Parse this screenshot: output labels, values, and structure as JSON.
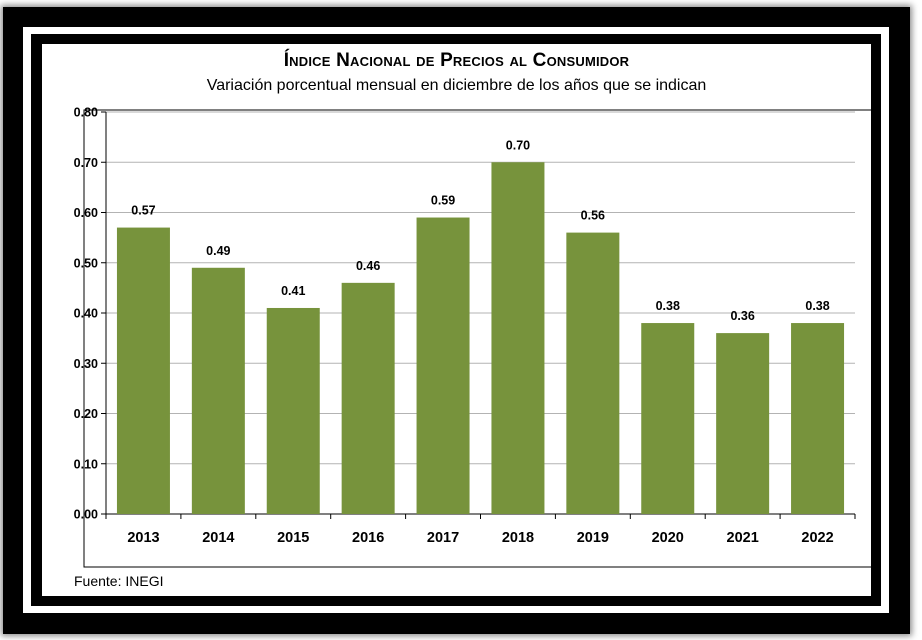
{
  "chart_data": {
    "type": "bar",
    "title": "Índice Nacional de Precios al Consumidor",
    "subtitle": "Variación porcentual mensual en diciembre de los años que se indican",
    "categories": [
      "2013",
      "2014",
      "2015",
      "2016",
      "2017",
      "2018",
      "2019",
      "2020",
      "2021",
      "2022"
    ],
    "values": [
      0.57,
      0.49,
      0.41,
      0.46,
      0.59,
      0.7,
      0.56,
      0.38,
      0.36,
      0.38
    ],
    "data_labels": [
      "0.57",
      "0.49",
      "0.41",
      "0.46",
      "0.59",
      "0.70",
      "0.56",
      "0.38",
      "0.36",
      "0.38"
    ],
    "yticks": [
      0.0,
      0.1,
      0.2,
      0.3,
      0.4,
      0.5,
      0.6,
      0.7,
      0.8
    ],
    "ytick_labels": [
      "0.00",
      "0.10",
      "0.20",
      "0.30",
      "0.40",
      "0.50",
      "0.60",
      "0.70",
      "0.80"
    ],
    "ylim": [
      0,
      0.8
    ],
    "xlabel": "",
    "ylabel": "",
    "grid": true,
    "legend": "none",
    "bar_color": "#77933c",
    "grid_color": "#b3b3b3",
    "source": "Fuente: INEGI"
  }
}
